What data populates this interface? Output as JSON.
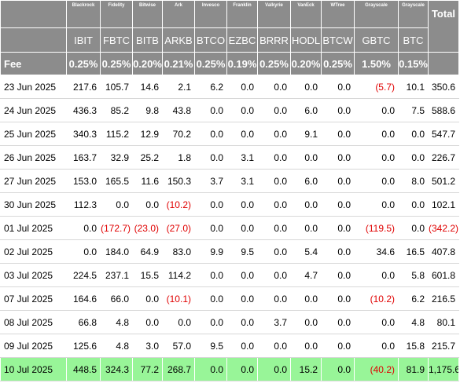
{
  "table": {
    "issuers": [
      "Blackrock",
      "Fidelity",
      "Bitwise",
      "Ark",
      "Invesco",
      "Franklin",
      "Valkyrie",
      "VanEck",
      "WTree",
      "Grayscale",
      "Grayscale"
    ],
    "total_label": "Total",
    "tickers": [
      "IBIT",
      "FBTC",
      "BITB",
      "ARKB",
      "BTCO",
      "EZBC",
      "BRRR",
      "HODL",
      "BTCW",
      "GBTC",
      "BTC"
    ],
    "fee_label": "Fee",
    "fees": [
      "0.25%",
      "0.25%",
      "0.20%",
      "0.21%",
      "0.25%",
      "0.19%",
      "0.25%",
      "0.20%",
      "0.25%",
      "1.50%",
      "0.15%"
    ],
    "rows": [
      {
        "date": "23 Jun 2025",
        "cells": [
          "217.6",
          "105.7",
          "14.6",
          "2.1",
          "6.2",
          "0.0",
          "0.0",
          "0.0",
          "0.0",
          "(5.7)",
          "10.1"
        ],
        "total": "350.6"
      },
      {
        "date": "24 Jun 2025",
        "cells": [
          "436.3",
          "85.2",
          "9.8",
          "43.8",
          "0.0",
          "0.0",
          "0.0",
          "6.0",
          "0.0",
          "0.0",
          "7.5"
        ],
        "total": "588.6"
      },
      {
        "date": "25 Jun 2025",
        "cells": [
          "340.3",
          "115.2",
          "12.9",
          "70.2",
          "0.0",
          "0.0",
          "0.0",
          "9.1",
          "0.0",
          "0.0",
          "0.0"
        ],
        "total": "547.7"
      },
      {
        "date": "26 Jun 2025",
        "cells": [
          "163.7",
          "32.9",
          "25.2",
          "1.8",
          "0.0",
          "3.1",
          "0.0",
          "0.0",
          "0.0",
          "0.0",
          "0.0"
        ],
        "total": "226.7"
      },
      {
        "date": "27 Jun 2025",
        "cells": [
          "153.0",
          "165.5",
          "11.6",
          "150.3",
          "3.7",
          "3.1",
          "0.0",
          "6.0",
          "0.0",
          "0.0",
          "8.0"
        ],
        "total": "501.2"
      },
      {
        "date": "30 Jun 2025",
        "cells": [
          "112.3",
          "0.0",
          "0.0",
          "(10.2)",
          "0.0",
          "0.0",
          "0.0",
          "0.0",
          "0.0",
          "0.0",
          "0.0"
        ],
        "total": "102.1"
      },
      {
        "date": "01 Jul 2025",
        "cells": [
          "0.0",
          "(172.7)",
          "(23.0)",
          "(27.0)",
          "0.0",
          "0.0",
          "0.0",
          "0.0",
          "0.0",
          "(119.5)",
          "0.0"
        ],
        "total": "(342.2)"
      },
      {
        "date": "02 Jul 2025",
        "cells": [
          "0.0",
          "184.0",
          "64.9",
          "83.0",
          "9.9",
          "9.5",
          "0.0",
          "5.4",
          "0.0",
          "34.6",
          "16.5"
        ],
        "total": "407.8"
      },
      {
        "date": "03 Jul 2025",
        "cells": [
          "224.5",
          "237.1",
          "15.5",
          "114.2",
          "0.0",
          "0.0",
          "0.0",
          "4.7",
          "0.0",
          "0.0",
          "5.8"
        ],
        "total": "601.8"
      },
      {
        "date": "07 Jul 2025",
        "cells": [
          "164.6",
          "66.0",
          "0.0",
          "(10.1)",
          "0.0",
          "0.0",
          "0.0",
          "0.0",
          "0.0",
          "(10.2)",
          "6.2"
        ],
        "total": "216.5"
      },
      {
        "date": "08 Jul 2025",
        "cells": [
          "66.8",
          "4.8",
          "0.0",
          "0.0",
          "0.0",
          "0.0",
          "3.7",
          "0.0",
          "0.0",
          "0.0",
          "4.8"
        ],
        "total": "80.1"
      },
      {
        "date": "09 Jul 2025",
        "cells": [
          "125.6",
          "4.8",
          "3.0",
          "57.0",
          "9.5",
          "0.0",
          "0.0",
          "0.0",
          "0.0",
          "0.0",
          "15.8"
        ],
        "total": "215.7"
      },
      {
        "date": "10 Jul 2025",
        "cells": [
          "448.5",
          "324.3",
          "77.2",
          "268.7",
          "0.0",
          "0.0",
          "0.0",
          "15.2",
          "0.0",
          "(40.2)",
          "81.9"
        ],
        "total": "1,175.6",
        "highlight": true
      }
    ]
  },
  "colors": {
    "header_bg": "#8c8c8c",
    "header_text": "#ffffff",
    "negative": "#e00000",
    "highlight_row": "#98f598"
  }
}
